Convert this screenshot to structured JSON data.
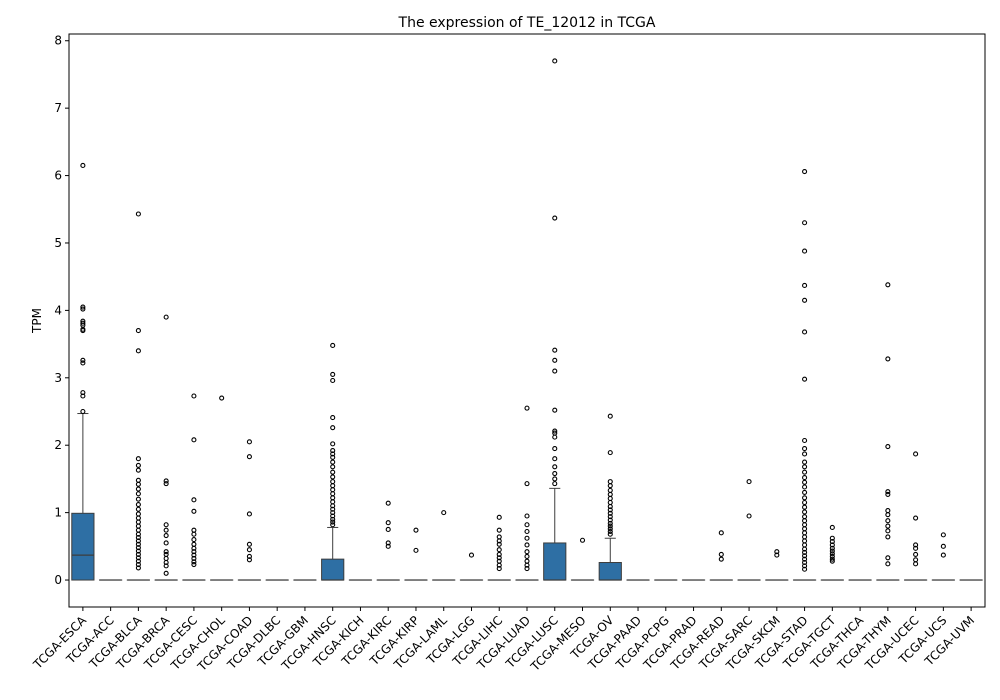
{
  "chart_data": {
    "type": "box",
    "title": "The expression of TE_12012 in TCGA",
    "xlabel": "",
    "ylabel": "TPM",
    "ylim": [
      -0.4,
      8.1
    ],
    "yticks": [
      0,
      1,
      2,
      3,
      4,
      5,
      6,
      7,
      8
    ],
    "grid": false,
    "box_color": "#2e6fa4",
    "categories": [
      "TCGA-ESCA",
      "TCGA-ACC",
      "TCGA-BLCA",
      "TCGA-BRCA",
      "TCGA-CESC",
      "TCGA-CHOL",
      "TCGA-COAD",
      "TCGA-DLBC",
      "TCGA-GBM",
      "TCGA-HNSC",
      "TCGA-KICH",
      "TCGA-KIRC",
      "TCGA-KIRP",
      "TCGA-LAML",
      "TCGA-LGG",
      "TCGA-LIHC",
      "TCGA-LUAD",
      "TCGA-LUSC",
      "TCGA-MESO",
      "TCGA-OV",
      "TCGA-PAAD",
      "TCGA-PCPG",
      "TCGA-PRAD",
      "TCGA-READ",
      "TCGA-SARC",
      "TCGA-SKCM",
      "TCGA-STAD",
      "TCGA-TGCT",
      "TCGA-THCA",
      "TCGA-THYM",
      "TCGA-UCEC",
      "TCGA-UCS",
      "TCGA-UVM"
    ],
    "boxes": [
      {
        "q1": 0,
        "median": 0.37,
        "q3": 0.99,
        "whisker_low": 0,
        "whisker_high": 2.47,
        "outliers": [
          6.15,
          4.05,
          4.02,
          3.84,
          3.81,
          3.78,
          3.72,
          3.7,
          3.26,
          3.22,
          2.78,
          2.73,
          2.5
        ]
      },
      {
        "q1": 0,
        "median": 0,
        "q3": 0,
        "whisker_low": 0,
        "whisker_high": 0,
        "outliers": []
      },
      {
        "q1": 0,
        "median": 0,
        "q3": 0,
        "whisker_low": 0,
        "whisker_high": 0,
        "outliers": [
          5.43,
          3.7,
          3.4,
          1.8,
          1.7,
          1.63,
          1.48,
          1.42,
          1.35,
          1.28,
          1.2,
          1.12,
          1.05,
          0.98,
          0.92,
          0.86,
          0.8,
          0.74,
          0.68,
          0.63,
          0.58,
          0.53,
          0.48,
          0.43,
          0.38,
          0.33,
          0.28,
          0.23,
          0.18
        ]
      },
      {
        "q1": 0,
        "median": 0,
        "q3": 0,
        "whisker_low": 0,
        "whisker_high": 0,
        "outliers": [
          3.9,
          1.47,
          1.43,
          0.82,
          0.74,
          0.66,
          0.55,
          0.42,
          0.38,
          0.32,
          0.26,
          0.21,
          0.1
        ]
      },
      {
        "q1": 0,
        "median": 0,
        "q3": 0,
        "whisker_low": 0,
        "whisker_high": 0,
        "outliers": [
          2.73,
          2.08,
          1.19,
          1.02,
          0.74,
          0.68,
          0.6,
          0.53,
          0.47,
          0.42,
          0.37,
          0.32,
          0.27,
          0.23
        ]
      },
      {
        "q1": 0,
        "median": 0,
        "q3": 0,
        "whisker_low": 0,
        "whisker_high": 0,
        "outliers": [
          2.7
        ]
      },
      {
        "q1": 0,
        "median": 0,
        "q3": 0,
        "whisker_low": 0,
        "whisker_high": 0,
        "outliers": [
          2.05,
          1.83,
          0.98,
          0.53,
          0.45,
          0.35,
          0.3
        ]
      },
      {
        "q1": 0,
        "median": 0,
        "q3": 0,
        "whisker_low": 0,
        "whisker_high": 0,
        "outliers": []
      },
      {
        "q1": 0,
        "median": 0,
        "q3": 0,
        "whisker_low": 0,
        "whisker_high": 0,
        "outliers": []
      },
      {
        "q1": 0,
        "median": 0,
        "q3": 0.31,
        "whisker_low": 0,
        "whisker_high": 0.78,
        "outliers": [
          3.48,
          3.05,
          2.96,
          2.41,
          2.26,
          2.02,
          1.92,
          1.87,
          1.82,
          1.75,
          1.68,
          1.6,
          1.53,
          1.46,
          1.4,
          1.34,
          1.28,
          1.22,
          1.16,
          1.1,
          1.05,
          1.0,
          0.95,
          0.9,
          0.86,
          0.82
        ]
      },
      {
        "q1": 0,
        "median": 0,
        "q3": 0,
        "whisker_low": 0,
        "whisker_high": 0,
        "outliers": []
      },
      {
        "q1": 0,
        "median": 0,
        "q3": 0,
        "whisker_low": 0,
        "whisker_high": 0,
        "outliers": [
          1.14,
          0.85,
          0.75,
          0.55,
          0.5
        ]
      },
      {
        "q1": 0,
        "median": 0,
        "q3": 0,
        "whisker_low": 0,
        "whisker_high": 0,
        "outliers": [
          0.74,
          0.44
        ]
      },
      {
        "q1": 0,
        "median": 0,
        "q3": 0,
        "whisker_low": 0,
        "whisker_high": 0,
        "outliers": [
          1.0
        ]
      },
      {
        "q1": 0,
        "median": 0,
        "q3": 0,
        "whisker_low": 0,
        "whisker_high": 0,
        "outliers": [
          0.37
        ]
      },
      {
        "q1": 0,
        "median": 0,
        "q3": 0,
        "whisker_low": 0,
        "whisker_high": 0,
        "outliers": [
          0.93,
          0.74,
          0.64,
          0.58,
          0.53,
          0.45,
          0.38,
          0.33,
          0.28,
          0.22,
          0.17
        ]
      },
      {
        "q1": 0,
        "median": 0,
        "q3": 0,
        "whisker_low": 0,
        "whisker_high": 0,
        "outliers": [
          2.55,
          1.43,
          0.95,
          0.82,
          0.72,
          0.62,
          0.52,
          0.42,
          0.35,
          0.28,
          0.22,
          0.17
        ]
      },
      {
        "q1": 0,
        "median": 0,
        "q3": 0.55,
        "whisker_low": 0,
        "whisker_high": 1.36,
        "outliers": [
          7.7,
          5.37,
          3.41,
          3.26,
          3.1,
          2.52,
          2.21,
          2.18,
          2.12,
          1.95,
          1.8,
          1.68,
          1.58,
          1.5,
          1.43
        ]
      },
      {
        "q1": 0,
        "median": 0,
        "q3": 0,
        "whisker_low": 0,
        "whisker_high": 0,
        "outliers": [
          0.59
        ]
      },
      {
        "q1": 0,
        "median": 0,
        "q3": 0.26,
        "whisker_low": 0,
        "whisker_high": 0.62,
        "outliers": [
          2.43,
          1.89,
          1.46,
          1.4,
          1.33,
          1.27,
          1.21,
          1.15,
          1.09,
          1.04,
          0.99,
          0.94,
          0.89,
          0.84,
          0.8,
          0.76,
          0.72,
          0.68
        ]
      },
      {
        "q1": 0,
        "median": 0,
        "q3": 0,
        "whisker_low": 0,
        "whisker_high": 0,
        "outliers": []
      },
      {
        "q1": 0,
        "median": 0,
        "q3": 0,
        "whisker_low": 0,
        "whisker_high": 0,
        "outliers": []
      },
      {
        "q1": 0,
        "median": 0,
        "q3": 0,
        "whisker_low": 0,
        "whisker_high": 0,
        "outliers": []
      },
      {
        "q1": 0,
        "median": 0,
        "q3": 0,
        "whisker_low": 0,
        "whisker_high": 0,
        "outliers": [
          0.7,
          0.38,
          0.31
        ]
      },
      {
        "q1": 0,
        "median": 0,
        "q3": 0,
        "whisker_low": 0,
        "whisker_high": 0,
        "outliers": [
          1.46,
          0.95
        ]
      },
      {
        "q1": 0,
        "median": 0,
        "q3": 0,
        "whisker_low": 0,
        "whisker_high": 0,
        "outliers": [
          0.42,
          0.37
        ]
      },
      {
        "q1": 0,
        "median": 0,
        "q3": 0,
        "whisker_low": 0,
        "whisker_high": 0,
        "outliers": [
          6.06,
          5.3,
          4.88,
          4.37,
          4.15,
          3.68,
          2.98,
          2.07,
          1.95,
          1.87,
          1.75,
          1.68,
          1.6,
          1.52,
          1.45,
          1.38,
          1.3,
          1.22,
          1.15,
          1.08,
          1.01,
          0.94,
          0.88,
          0.82,
          0.76,
          0.7,
          0.64,
          0.58,
          0.52,
          0.46,
          0.41,
          0.36,
          0.31,
          0.26,
          0.21,
          0.16
        ]
      },
      {
        "q1": 0,
        "median": 0,
        "q3": 0,
        "whisker_low": 0,
        "whisker_high": 0,
        "outliers": [
          0.78,
          0.62,
          0.57,
          0.52,
          0.47,
          0.43,
          0.39,
          0.35,
          0.31,
          0.28
        ]
      },
      {
        "q1": 0,
        "median": 0,
        "q3": 0,
        "whisker_low": 0,
        "whisker_high": 0,
        "outliers": []
      },
      {
        "q1": 0,
        "median": 0,
        "q3": 0,
        "whisker_low": 0,
        "whisker_high": 0,
        "outliers": [
          4.38,
          3.28,
          1.98,
          1.31,
          1.27,
          1.03,
          0.97,
          0.88,
          0.8,
          0.73,
          0.64,
          0.33,
          0.24
        ]
      },
      {
        "q1": 0,
        "median": 0,
        "q3": 0,
        "whisker_low": 0,
        "whisker_high": 0,
        "outliers": [
          1.87,
          0.92,
          0.52,
          0.47,
          0.38,
          0.3,
          0.24
        ]
      },
      {
        "q1": 0,
        "median": 0,
        "q3": 0,
        "whisker_low": 0,
        "whisker_high": 0,
        "outliers": [
          0.67,
          0.5,
          0.37
        ]
      },
      {
        "q1": 0,
        "median": 0,
        "q3": 0,
        "whisker_low": 0,
        "whisker_high": 0,
        "outliers": []
      }
    ]
  }
}
